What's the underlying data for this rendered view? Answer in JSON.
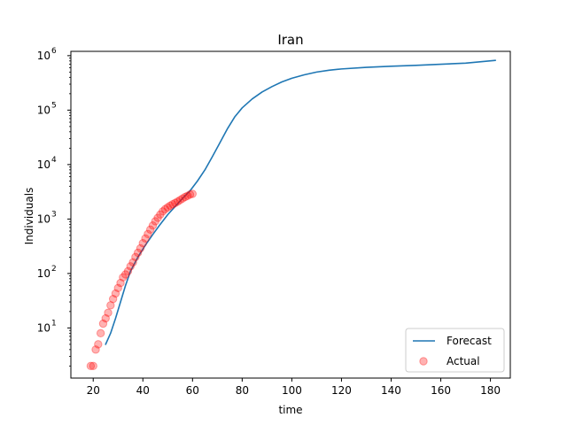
{
  "chart_data": {
    "type": "line",
    "title": "Iran",
    "xlabel": "time",
    "ylabel": "Individuals",
    "xlim": [
      11,
      188
    ],
    "ylim": [
      1.2,
      1200000
    ],
    "yscale": "log",
    "grid": false,
    "legend_position": "lower right",
    "x_ticks": [
      20,
      40,
      60,
      80,
      100,
      120,
      140,
      160,
      180
    ],
    "y_ticks": [
      {
        "base": "10",
        "exp": "1",
        "value": 10
      },
      {
        "base": "10",
        "exp": "2",
        "value": 100
      },
      {
        "base": "10",
        "exp": "3",
        "value": 1000
      },
      {
        "base": "10",
        "exp": "4",
        "value": 10000
      },
      {
        "base": "10",
        "exp": "5",
        "value": 100000
      },
      {
        "base": "10",
        "exp": "6",
        "value": 1000000
      }
    ],
    "series": [
      {
        "name": "Forecast",
        "kind": "line",
        "color": "#1f77b4",
        "points": [
          [
            25,
            5
          ],
          [
            27,
            8
          ],
          [
            29,
            15
          ],
          [
            31,
            30
          ],
          [
            33,
            60
          ],
          [
            35,
            110
          ],
          [
            38,
            200
          ],
          [
            41,
            330
          ],
          [
            44,
            520
          ],
          [
            47,
            800
          ],
          [
            50,
            1200
          ],
          [
            53,
            1700
          ],
          [
            56,
            2400
          ],
          [
            59,
            3300
          ],
          [
            62,
            5000
          ],
          [
            65,
            8000
          ],
          [
            68,
            14000
          ],
          [
            71,
            25000
          ],
          [
            74,
            45000
          ],
          [
            77,
            75000
          ],
          [
            80,
            110000
          ],
          [
            84,
            160000
          ],
          [
            88,
            215000
          ],
          [
            92,
            270000
          ],
          [
            96,
            330000
          ],
          [
            100,
            385000
          ],
          [
            105,
            445000
          ],
          [
            110,
            500000
          ],
          [
            115,
            540000
          ],
          [
            120,
            570000
          ],
          [
            130,
            610000
          ],
          [
            140,
            640000
          ],
          [
            150,
            665000
          ],
          [
            160,
            695000
          ],
          [
            170,
            730000
          ],
          [
            182,
            820000
          ]
        ]
      },
      {
        "name": "Actual",
        "kind": "scatter",
        "color": "#ff0000",
        "points": [
          [
            19,
            2
          ],
          [
            20,
            2
          ],
          [
            21,
            4
          ],
          [
            22,
            5
          ],
          [
            23,
            8
          ],
          [
            24,
            12
          ],
          [
            25,
            15
          ],
          [
            26,
            19
          ],
          [
            27,
            26
          ],
          [
            28,
            34
          ],
          [
            29,
            43
          ],
          [
            30,
            54
          ],
          [
            31,
            67
          ],
          [
            32,
            85
          ],
          [
            33,
            96
          ],
          [
            34,
            110
          ],
          [
            35,
            135
          ],
          [
            36,
            160
          ],
          [
            37,
            200
          ],
          [
            38,
            240
          ],
          [
            39,
            290
          ],
          [
            40,
            360
          ],
          [
            41,
            440
          ],
          [
            42,
            530
          ],
          [
            43,
            640
          ],
          [
            44,
            760
          ],
          [
            45,
            910
          ],
          [
            46,
            1050
          ],
          [
            47,
            1210
          ],
          [
            48,
            1380
          ],
          [
            49,
            1520
          ],
          [
            50,
            1640
          ],
          [
            51,
            1760
          ],
          [
            52,
            1870
          ],
          [
            53,
            1970
          ],
          [
            54,
            2090
          ],
          [
            55,
            2230
          ],
          [
            56,
            2380
          ],
          [
            57,
            2540
          ],
          [
            58,
            2670
          ],
          [
            59,
            2820
          ],
          [
            60,
            2900
          ]
        ]
      }
    ]
  }
}
